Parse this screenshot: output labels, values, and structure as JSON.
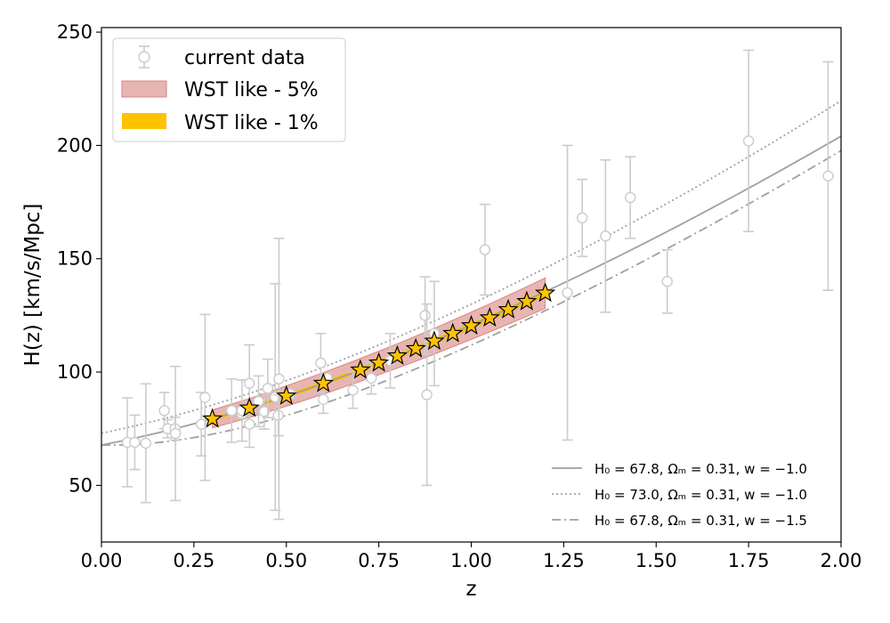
{
  "chart_data": {
    "type": "scatter",
    "xlabel": "z",
    "ylabel": "H(z) [km/s/Mpc]",
    "xlim": [
      0.0,
      2.0
    ],
    "ylim": [
      25,
      252
    ],
    "x_ticks": [
      0.0,
      0.25,
      0.5,
      0.75,
      1.0,
      1.25,
      1.5,
      1.75,
      2.0
    ],
    "x_tick_labels": [
      "0.00",
      "0.25",
      "0.50",
      "0.75",
      "1.00",
      "1.25",
      "1.50",
      "1.75",
      "2.00"
    ],
    "y_ticks": [
      50,
      100,
      150,
      200,
      250
    ],
    "y_tick_labels": [
      "50",
      "100",
      "150",
      "200",
      "250"
    ],
    "legend_main": {
      "position": "top-left",
      "entries": [
        {
          "label": "current data",
          "kind": "errorbar-marker",
          "color": "#cccccc"
        },
        {
          "label": "WST like - 5%",
          "kind": "band",
          "color": "#d9847e"
        },
        {
          "label": "WST like - 1%",
          "kind": "band",
          "color": "#ffc200"
        }
      ]
    },
    "legend_models": {
      "position": "bottom-right",
      "entries": [
        {
          "label": "H₀ = 67.8, Ωₘ = 0.31, w = −1.0",
          "style": "solid"
        },
        {
          "label": "H₀ = 73.0, Ωₘ = 0.31, w = −1.0",
          "style": "dotted"
        },
        {
          "label": "H₀ = 67.8, Ωₘ = 0.31, w = −1.5",
          "style": "dashdot"
        }
      ]
    },
    "models": [
      {
        "name": "H0=67.8 w=-1.0",
        "H0": 67.8,
        "Om": 0.31,
        "w": -1.0,
        "style": "solid",
        "color": "#a0a0a0"
      },
      {
        "name": "H0=73.0 w=-1.0",
        "H0": 73.0,
        "Om": 0.31,
        "w": -1.0,
        "style": "dotted",
        "color": "#a0a0a0"
      },
      {
        "name": "H0=67.8 w=-1.5",
        "H0": 67.8,
        "Om": 0.31,
        "w": -1.5,
        "style": "dashdot",
        "color": "#a0a0a0"
      }
    ],
    "current_data": [
      {
        "z": 0.07,
        "H": 69,
        "err": 19.6
      },
      {
        "z": 0.09,
        "H": 69,
        "err": 12
      },
      {
        "z": 0.12,
        "H": 68.6,
        "err": 26.2
      },
      {
        "z": 0.17,
        "H": 83,
        "err": 8
      },
      {
        "z": 0.179,
        "H": 75,
        "err": 4
      },
      {
        "z": 0.199,
        "H": 75,
        "err": 5
      },
      {
        "z": 0.2,
        "H": 72.9,
        "err": 29.6
      },
      {
        "z": 0.27,
        "H": 77,
        "err": 14
      },
      {
        "z": 0.28,
        "H": 88.8,
        "err": 36.6
      },
      {
        "z": 0.352,
        "H": 83,
        "err": 14
      },
      {
        "z": 0.38,
        "H": 81.5,
        "err": 1.9
      },
      {
        "z": 0.3802,
        "H": 83,
        "err": 13.5
      },
      {
        "z": 0.4,
        "H": 95,
        "err": 17
      },
      {
        "z": 0.4004,
        "H": 77,
        "err": 10.2
      },
      {
        "z": 0.4247,
        "H": 87.1,
        "err": 11.2
      },
      {
        "z": 0.44,
        "H": 82.6,
        "err": 7.8
      },
      {
        "z": 0.4497,
        "H": 92.8,
        "err": 12.9
      },
      {
        "z": 0.47,
        "H": 89,
        "err": 50
      },
      {
        "z": 0.4783,
        "H": 80.9,
        "err": 9
      },
      {
        "z": 0.48,
        "H": 97,
        "err": 62
      },
      {
        "z": 0.51,
        "H": 90.4,
        "err": 1.9
      },
      {
        "z": 0.593,
        "H": 104,
        "err": 13
      },
      {
        "z": 0.6,
        "H": 87.9,
        "err": 6.1
      },
      {
        "z": 0.61,
        "H": 97.3,
        "err": 2.1
      },
      {
        "z": 0.68,
        "H": 92,
        "err": 8
      },
      {
        "z": 0.73,
        "H": 97.3,
        "err": 7
      },
      {
        "z": 0.781,
        "H": 105,
        "err": 12
      },
      {
        "z": 0.875,
        "H": 125,
        "err": 17
      },
      {
        "z": 0.88,
        "H": 90,
        "err": 40
      },
      {
        "z": 0.9,
        "H": 117,
        "err": 23
      },
      {
        "z": 1.037,
        "H": 154,
        "err": 20
      },
      {
        "z": 1.26,
        "H": 135,
        "err": 65
      },
      {
        "z": 1.3,
        "H": 168,
        "err": 17
      },
      {
        "z": 1.363,
        "H": 160,
        "err": 33.6
      },
      {
        "z": 1.43,
        "H": 177,
        "err": 18
      },
      {
        "z": 1.53,
        "H": 140,
        "err": 14
      },
      {
        "z": 1.75,
        "H": 202,
        "err": 40
      },
      {
        "z": 1.965,
        "H": 186.5,
        "err": 50.4
      }
    ],
    "wst_points": {
      "z": [
        0.3,
        0.4,
        0.5,
        0.6,
        0.7,
        0.75,
        0.8,
        0.85,
        0.9,
        0.95,
        1.0,
        1.05,
        1.1,
        1.15,
        1.2
      ],
      "H": [
        79.3,
        84.1,
        89.4,
        95.0,
        100.9,
        104.0,
        107.1,
        110.3,
        113.6,
        117.0,
        120.4,
        123.9,
        127.5,
        131.1,
        134.8
      ]
    },
    "bands": [
      {
        "label": "WST like - 5%",
        "rel_error": 0.05,
        "color": "#d9847e"
      },
      {
        "label": "WST like - 1%",
        "rel_error": 0.01,
        "color": "#ffc200"
      }
    ]
  }
}
